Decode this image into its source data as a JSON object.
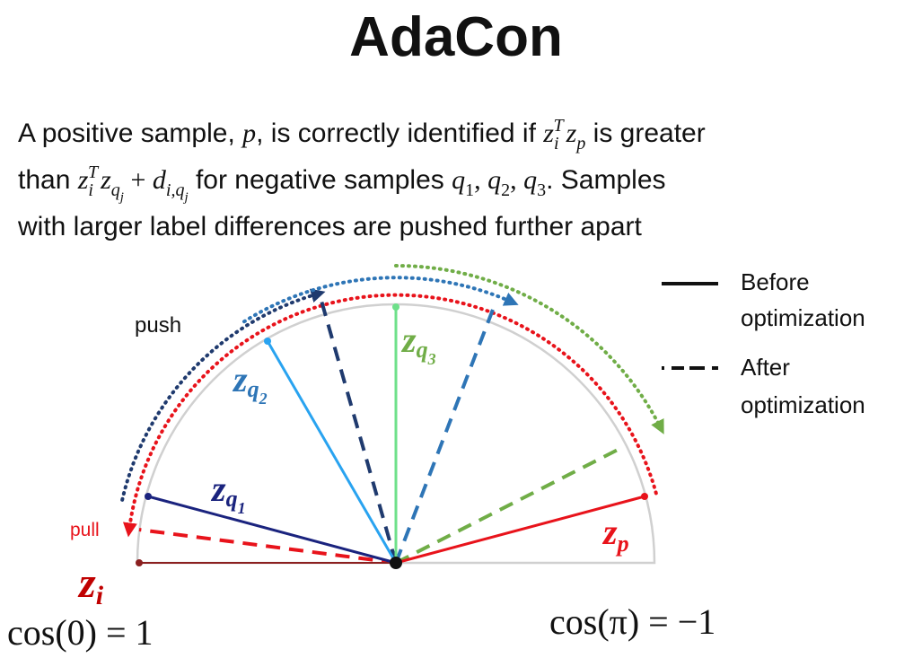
{
  "title": "AdaCon",
  "description": [
    [
      "A positive sample, ",
      "p",
      ", is correctly identified if ",
      "z",
      "i",
      "T",
      "z",
      "p",
      " is greater"
    ],
    [
      "than ",
      "z",
      "i",
      "T",
      "z",
      "q",
      "j",
      " + ",
      "d",
      "i,q",
      "j",
      " for negative samples ",
      "q",
      "1",
      ", ",
      "q",
      "2",
      ", ",
      "q",
      "3",
      ". Samples"
    ],
    [
      "with larger label differences are pushed further apart"
    ]
  ],
  "diagram": {
    "annotations": {
      "push": "push",
      "pull": "pull"
    },
    "legend": [
      [
        "Before",
        "optimization"
      ],
      [
        "After",
        "optimization"
      ]
    ],
    "vector_labels": [
      [
        "z",
        "i"
      ],
      [
        "z",
        "p"
      ],
      [
        "z",
        "q",
        "1"
      ],
      [
        "z",
        "q",
        "2"
      ],
      [
        "z",
        "q",
        "3"
      ]
    ],
    "axis_labels": [
      "cos(0) = 1",
      "cos(π) = −1"
    ]
  }
}
